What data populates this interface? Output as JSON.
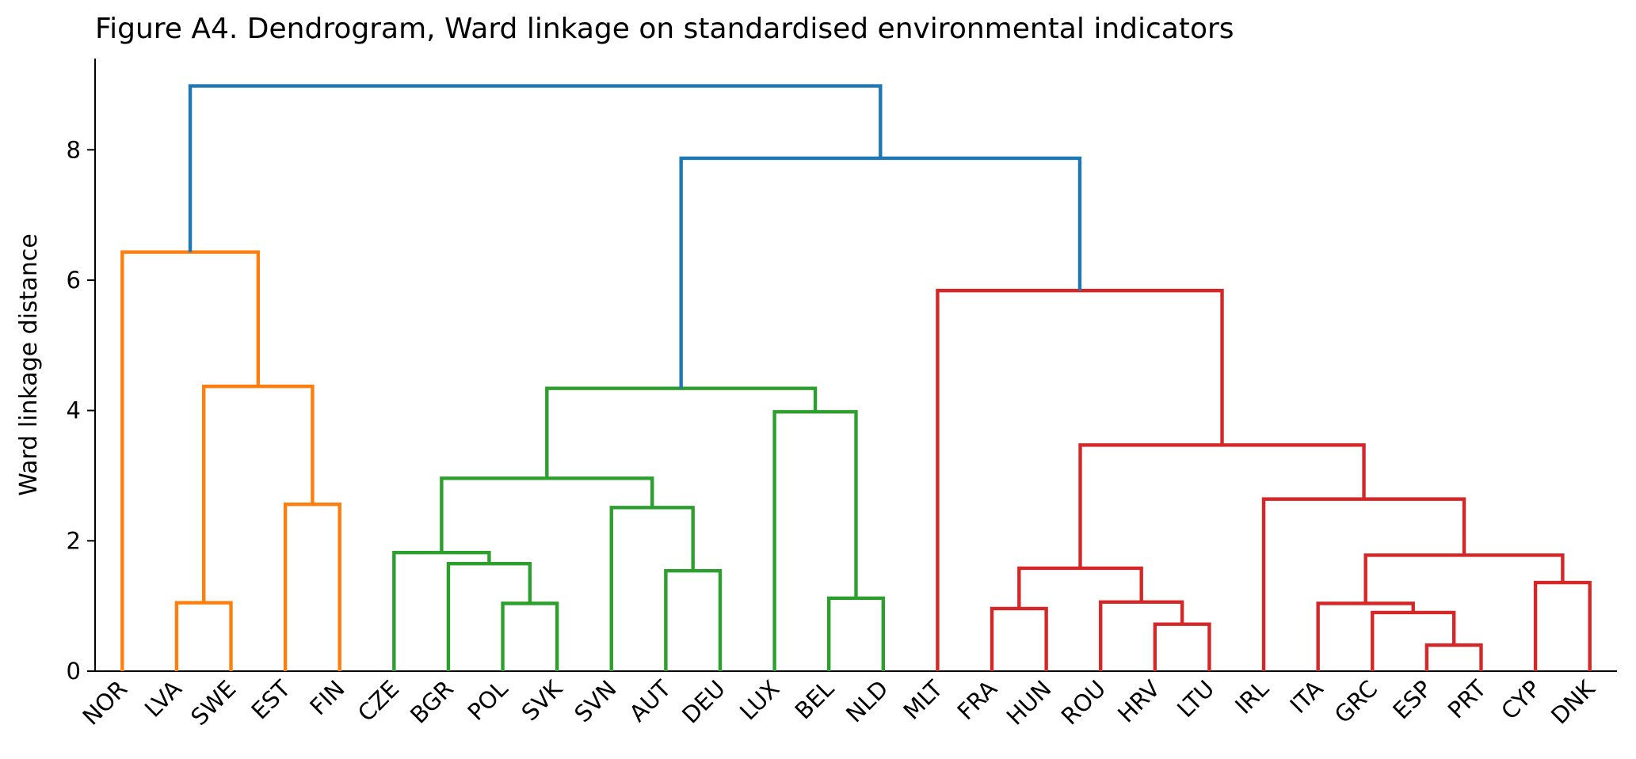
{
  "chart_data": {
    "type": "dendrogram",
    "title": "Figure A4. Dendrogram, Ward linkage on standardised environmental indicators",
    "y_label": "Ward linkage distance",
    "leaves": [
      "NOR",
      "LVA",
      "SWE",
      "EST",
      "FIN",
      "CZE",
      "BGR",
      "POL",
      "SVK",
      "SVN",
      "AUT",
      "DEU",
      "LUX",
      "BEL",
      "NLD",
      "MLT",
      "FRA",
      "HUN",
      "ROU",
      "HRV",
      "LTU",
      "IRL",
      "ITA",
      "GRC",
      "ESP",
      "PRT",
      "CYP",
      "DNK"
    ],
    "merges": [
      {
        "left": 1,
        "right": 2,
        "height": 1.05,
        "color": "#ff7f0e"
      },
      {
        "left": 3,
        "right": 4,
        "height": 2.56,
        "color": "#ff7f0e"
      },
      {
        "left": 28,
        "right": 29,
        "height": 4.37,
        "color": "#ff7f0e"
      },
      {
        "left": 0,
        "right": 30,
        "height": 6.43,
        "color": "#ff7f0e"
      },
      {
        "left": 7,
        "right": 8,
        "height": 1.04,
        "color": "#2ca02c"
      },
      {
        "left": 6,
        "right": 32,
        "height": 1.65,
        "color": "#2ca02c"
      },
      {
        "left": 5,
        "right": 33,
        "height": 1.82,
        "color": "#2ca02c"
      },
      {
        "left": 10,
        "right": 11,
        "height": 1.54,
        "color": "#2ca02c"
      },
      {
        "left": 9,
        "right": 35,
        "height": 2.51,
        "color": "#2ca02c"
      },
      {
        "left": 34,
        "right": 36,
        "height": 2.96,
        "color": "#2ca02c"
      },
      {
        "left": 13,
        "right": 14,
        "height": 1.12,
        "color": "#2ca02c"
      },
      {
        "left": 12,
        "right": 38,
        "height": 3.98,
        "color": "#2ca02c"
      },
      {
        "left": 37,
        "right": 39,
        "height": 4.34,
        "color": "#2ca02c"
      },
      {
        "left": 16,
        "right": 17,
        "height": 0.96,
        "color": "#d62728"
      },
      {
        "left": 19,
        "right": 20,
        "height": 0.72,
        "color": "#d62728"
      },
      {
        "left": 18,
        "right": 42,
        "height": 1.06,
        "color": "#d62728"
      },
      {
        "left": 41,
        "right": 43,
        "height": 1.58,
        "color": "#d62728"
      },
      {
        "left": 24,
        "right": 25,
        "height": 0.4,
        "color": "#d62728"
      },
      {
        "left": 23,
        "right": 45,
        "height": 0.9,
        "color": "#d62728"
      },
      {
        "left": 22,
        "right": 46,
        "height": 1.04,
        "color": "#d62728"
      },
      {
        "left": 26,
        "right": 27,
        "height": 1.36,
        "color": "#d62728"
      },
      {
        "left": 47,
        "right": 48,
        "height": 1.78,
        "color": "#d62728"
      },
      {
        "left": 21,
        "right": 49,
        "height": 2.64,
        "color": "#d62728"
      },
      {
        "left": 44,
        "right": 50,
        "height": 3.47,
        "color": "#d62728"
      },
      {
        "left": 15,
        "right": 51,
        "height": 5.84,
        "color": "#d62728"
      },
      {
        "left": 40,
        "right": 52,
        "height": 7.87,
        "color": "#1f77b4"
      },
      {
        "left": 31,
        "right": 53,
        "height": 8.98,
        "color": "#1f77b4"
      }
    ],
    "ylim": [
      0,
      9.4
    ],
    "yticks": [
      0,
      2,
      4,
      6,
      8
    ]
  }
}
